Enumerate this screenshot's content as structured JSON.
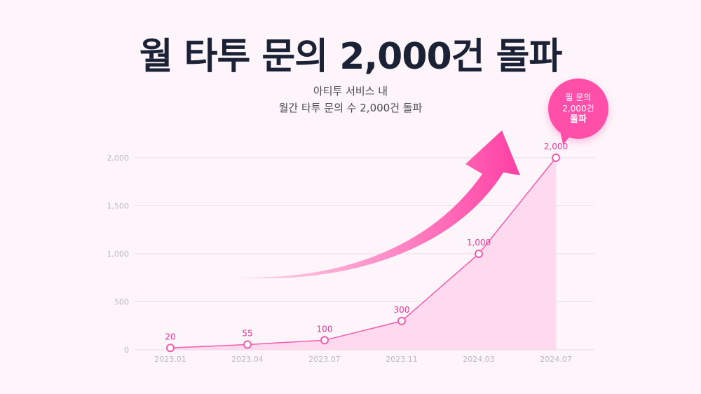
{
  "title": "월 타투 문의 2,000건 돌파",
  "subtitle_lines": [
    "아티투 서비스 내",
    "월간 타투 문의 수 2,000건 돌파"
  ],
  "callout": {
    "line1": "월 문의",
    "line2": "2,000건",
    "line3": "돌파"
  },
  "colors": {
    "accent": "#ff4fa8",
    "area": "#ffd3ea",
    "line": "#f25cae",
    "title": "#1b2235"
  },
  "chart_data": {
    "type": "area",
    "categories": [
      "2023.01",
      "2023.04",
      "2023.07",
      "2023.11",
      "2024.03",
      "2024.07"
    ],
    "values": [
      20,
      55,
      100,
      300,
      1000,
      2000
    ],
    "data_labels": [
      "20",
      "55",
      "100",
      "300",
      "1,000",
      "2,000"
    ],
    "yticks": [
      0,
      500,
      1000,
      1500,
      2000
    ],
    "ytick_labels": [
      "0",
      "500",
      "1,000",
      "1,500",
      "2,000"
    ],
    "ylim": [
      0,
      2000
    ],
    "grid": true,
    "xlabel": "",
    "ylabel": ""
  }
}
